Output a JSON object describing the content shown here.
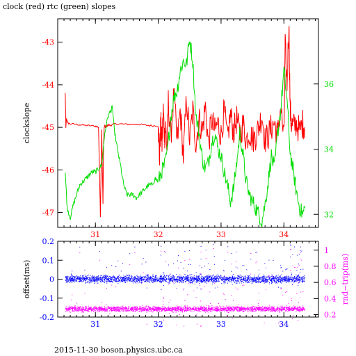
{
  "title": "clock (red) rtc (green) slopes",
  "footer": "2015-11-30 boson.physics.ubc.ca",
  "colors": {
    "clock": "#ff0000",
    "rtc": "#00dd00",
    "offset": "#0000ff",
    "rndtrip": "#ff00ff",
    "axis": "#000000"
  },
  "chart_data": [
    {
      "type": "line",
      "ylabel": "clockslope",
      "y2label": "",
      "xlim": [
        30.4,
        34.55
      ],
      "ylim": [
        -47.35,
        -42.45
      ],
      "y2lim": [
        31.6,
        38.0
      ],
      "xticks": [
        31,
        32,
        33,
        34
      ],
      "yticks": [
        -47,
        -46,
        -45,
        -44,
        -43
      ],
      "y2ticks": [
        32,
        34,
        36
      ],
      "series": [
        {
          "key": "clock",
          "axis": "left",
          "x": [
            30.52,
            30.53,
            30.54,
            30.56,
            30.6,
            30.7,
            30.8,
            30.9,
            31.0,
            31.05,
            31.08,
            31.1,
            31.12,
            31.13,
            31.14,
            31.15,
            31.16,
            31.18,
            31.2,
            31.25,
            31.3,
            31.4,
            31.5,
            31.6,
            31.7,
            31.8,
            31.9,
            32.0,
            32.02,
            32.04,
            32.06,
            32.08,
            32.1,
            32.12,
            32.14,
            32.16,
            32.2,
            32.25,
            32.3,
            32.35,
            32.4,
            32.45,
            32.5,
            32.55,
            32.6,
            32.65,
            32.7,
            32.75,
            32.8,
            32.85,
            32.9,
            32.95,
            33.0,
            33.05,
            33.1,
            33.15,
            33.2,
            33.25,
            33.3,
            33.35,
            33.4,
            33.45,
            33.5,
            33.55,
            33.6,
            33.65,
            33.7,
            33.75,
            33.8,
            33.85,
            33.9,
            33.95,
            34.0,
            34.02,
            34.05,
            34.08,
            34.1,
            34.12,
            34.15,
            34.2,
            34.25,
            34.3,
            34.33
          ],
          "y": [
            -44.2,
            -45.0,
            -44.8,
            -44.9,
            -44.92,
            -44.93,
            -44.95,
            -44.96,
            -44.97,
            -45.0,
            -47.1,
            -45.05,
            -46.8,
            -45.4,
            -45.0,
            -44.95,
            -45.0,
            -44.97,
            -44.95,
            -44.95,
            -44.92,
            -44.92,
            -44.93,
            -44.93,
            -44.93,
            -44.95,
            -44.96,
            -44.97,
            -45.7,
            -44.9,
            -45.4,
            -44.6,
            -45.2,
            -45.0,
            -45.6,
            -44.4,
            -45.2,
            -44.2,
            -45.4,
            -44.6,
            -45.7,
            -44.3,
            -45.3,
            -44.6,
            -45.4,
            -44.8,
            -45.1,
            -44.5,
            -45.4,
            -44.8,
            -45.1,
            -44.9,
            -45.2,
            -44.6,
            -45.3,
            -44.7,
            -45.1,
            -44.8,
            -45.2,
            -44.9,
            -45.3,
            -45.1,
            -45.3,
            -45.2,
            -45.0,
            -44.7,
            -45.3,
            -45.2,
            -45.0,
            -44.9,
            -45.2,
            -44.5,
            -45.3,
            -43.1,
            -44.0,
            -42.5,
            -44.6,
            -44.9,
            -45.0,
            -44.9,
            -45.1,
            -44.9,
            -45.0
          ]
        },
        {
          "key": "rtc",
          "axis": "right",
          "x": [
            30.52,
            30.55,
            30.6,
            30.65,
            30.7,
            30.75,
            30.8,
            30.85,
            30.9,
            30.95,
            31.0,
            31.05,
            31.1,
            31.15,
            31.2,
            31.25,
            31.27,
            31.3,
            31.35,
            31.4,
            31.45,
            31.5,
            31.55,
            31.6,
            31.65,
            31.7,
            31.75,
            31.8,
            31.85,
            31.9,
            31.95,
            32.0,
            32.05,
            32.1,
            32.15,
            32.2,
            32.25,
            32.3,
            32.35,
            32.4,
            32.45,
            32.5,
            32.55,
            32.6,
            32.65,
            32.7,
            32.75,
            32.8,
            32.85,
            32.9,
            32.95,
            33.0,
            33.05,
            33.1,
            33.15,
            33.2,
            33.25,
            33.3,
            33.35,
            33.4,
            33.45,
            33.5,
            33.55,
            33.6,
            33.65,
            33.7,
            33.75,
            33.8,
            33.85,
            33.9,
            33.95,
            34.0,
            34.05,
            34.1,
            34.15,
            34.2,
            34.25,
            34.3,
            34.33
          ],
          "y": [
            33.3,
            32.2,
            31.9,
            32.3,
            32.6,
            32.9,
            33.0,
            33.1,
            33.2,
            33.3,
            33.3,
            33.4,
            33.5,
            34.5,
            35.0,
            35.2,
            35.3,
            34.6,
            34.0,
            33.5,
            32.9,
            32.6,
            32.6,
            32.6,
            32.5,
            32.6,
            32.7,
            32.8,
            32.9,
            32.9,
            33.1,
            33.0,
            33.3,
            33.5,
            34.0,
            35.0,
            35.6,
            35.8,
            36.4,
            36.7,
            36.6,
            37.4,
            36.7,
            35.0,
            34.5,
            33.7,
            33.4,
            33.6,
            34.2,
            34.5,
            34.0,
            33.8,
            33.3,
            32.9,
            32.4,
            32.8,
            33.6,
            34.5,
            33.8,
            33.0,
            32.6,
            32.4,
            32.2,
            32.0,
            31.8,
            32.3,
            33.0,
            33.8,
            33.4,
            34.5,
            35.2,
            36.4,
            35.5,
            33.9,
            33.3,
            32.7,
            32.2,
            32.0,
            32.2
          ]
        }
      ]
    },
    {
      "type": "scatter",
      "ylabel": "offset(ms)",
      "y2label": "rnd−trip(ms)",
      "xlim": [
        30.4,
        34.55
      ],
      "ylim": [
        -0.2,
        0.2
      ],
      "y2lim": [
        0.17,
        1.11
      ],
      "xticks": [
        31,
        32,
        33,
        34
      ],
      "yticks": [
        -0.2,
        -0.1,
        0,
        0.1,
        0.2
      ],
      "y2ticks": [
        0.2,
        0.4,
        0.6,
        0.8,
        1
      ],
      "series": [
        {
          "key": "offset",
          "axis": "left",
          "x_range": [
            30.52,
            34.33
          ],
          "center": 0.0,
          "spread": 0.012,
          "outlier_max": 0.19
        },
        {
          "key": "rndtrip",
          "axis": "right",
          "x_range": [
            30.52,
            34.33
          ],
          "center": 0.27,
          "spread": 0.02,
          "outlier_max": 1.05
        }
      ]
    }
  ]
}
